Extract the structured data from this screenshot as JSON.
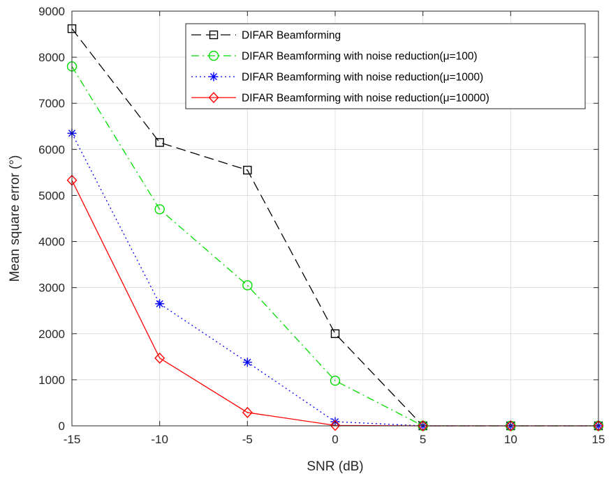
{
  "chart_data": {
    "type": "line",
    "xlabel": "SNR (dB)",
    "ylabel": "Mean square error (°)",
    "xlim": [
      -15,
      15
    ],
    "ylim": [
      0,
      9000
    ],
    "xticks": [
      -15,
      -10,
      -5,
      0,
      5,
      10,
      15
    ],
    "yticks": [
      0,
      1000,
      2000,
      3000,
      4000,
      5000,
      6000,
      7000,
      8000,
      9000
    ],
    "grid": true,
    "legend_position": "top-right",
    "x": [
      -15,
      -10,
      -5,
      0,
      5,
      10,
      15
    ],
    "series": [
      {
        "name": "DIFAR Beamforming",
        "values": [
          8620,
          6150,
          5550,
          2000,
          0,
          0,
          0
        ],
        "color": "#000000",
        "line_style": "dashed",
        "marker": "square"
      },
      {
        "name": "DIFAR Beamforming with noise reduction(μ=100)",
        "values": [
          7800,
          4700,
          3050,
          980,
          0,
          0,
          0
        ],
        "color": "#00dd00",
        "line_style": "dash-dot",
        "marker": "circle"
      },
      {
        "name": "DIFAR Beamforming with noise reduction(μ=1000)",
        "values": [
          6350,
          2650,
          1380,
          90,
          0,
          0,
          0
        ],
        "color": "#0000ff",
        "line_style": "dotted",
        "marker": "asterisk"
      },
      {
        "name": "DIFAR Beamforming with noise reduction(μ=10000)",
        "values": [
          5330,
          1470,
          290,
          10,
          0,
          0,
          0
        ],
        "color": "#ff0000",
        "line_style": "solid",
        "marker": "diamond"
      }
    ]
  }
}
